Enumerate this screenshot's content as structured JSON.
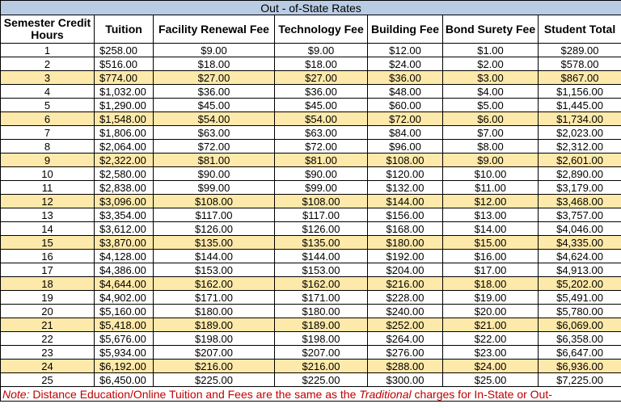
{
  "title": "Out - of-State Rates",
  "headers": {
    "hours": "Semester Credit Hours",
    "tuition": "Tuition",
    "facility": "Facility Renewal Fee",
    "technology": "Technology Fee",
    "building": "Building Fee",
    "bond": "Bond Surety Fee",
    "total": "Student Total"
  },
  "highlight_color": "#fde9a9",
  "title_color": "#b8cce4",
  "note_color": "#c00000",
  "rows": [
    {
      "hours": "1",
      "tuition": "$258.00",
      "facility": "$9.00",
      "technology": "$9.00",
      "building": "$12.00",
      "bond": "$1.00",
      "total": "$289.00",
      "highlight": false
    },
    {
      "hours": "2",
      "tuition": "$516.00",
      "facility": "$18.00",
      "technology": "$18.00",
      "building": "$24.00",
      "bond": "$2.00",
      "total": "$578.00",
      "highlight": false
    },
    {
      "hours": "3",
      "tuition": "$774.00",
      "facility": "$27.00",
      "technology": "$27.00",
      "building": "$36.00",
      "bond": "$3.00",
      "total": "$867.00",
      "highlight": true
    },
    {
      "hours": "4",
      "tuition": "$1,032.00",
      "facility": "$36.00",
      "technology": "$36.00",
      "building": "$48.00",
      "bond": "$4.00",
      "total": "$1,156.00",
      "highlight": false
    },
    {
      "hours": "5",
      "tuition": "$1,290.00",
      "facility": "$45.00",
      "technology": "$45.00",
      "building": "$60.00",
      "bond": "$5.00",
      "total": "$1,445.00",
      "highlight": false
    },
    {
      "hours": "6",
      "tuition": "$1,548.00",
      "facility": "$54.00",
      "technology": "$54.00",
      "building": "$72.00",
      "bond": "$6.00",
      "total": "$1,734.00",
      "highlight": true
    },
    {
      "hours": "7",
      "tuition": "$1,806.00",
      "facility": "$63.00",
      "technology": "$63.00",
      "building": "$84.00",
      "bond": "$7.00",
      "total": "$2,023.00",
      "highlight": false
    },
    {
      "hours": "8",
      "tuition": "$2,064.00",
      "facility": "$72.00",
      "technology": "$72.00",
      "building": "$96.00",
      "bond": "$8.00",
      "total": "$2,312.00",
      "highlight": false
    },
    {
      "hours": "9",
      "tuition": "$2,322.00",
      "facility": "$81.00",
      "technology": "$81.00",
      "building": "$108.00",
      "bond": "$9.00",
      "total": "$2,601.00",
      "highlight": true
    },
    {
      "hours": "10",
      "tuition": "$2,580.00",
      "facility": "$90.00",
      "technology": "$90.00",
      "building": "$120.00",
      "bond": "$10.00",
      "total": "$2,890.00",
      "highlight": false
    },
    {
      "hours": "11",
      "tuition": "$2,838.00",
      "facility": "$99.00",
      "technology": "$99.00",
      "building": "$132.00",
      "bond": "$11.00",
      "total": "$3,179.00",
      "highlight": false
    },
    {
      "hours": "12",
      "tuition": "$3,096.00",
      "facility": "$108.00",
      "technology": "$108.00",
      "building": "$144.00",
      "bond": "$12.00",
      "total": "$3,468.00",
      "highlight": true
    },
    {
      "hours": "13",
      "tuition": "$3,354.00",
      "facility": "$117.00",
      "technology": "$117.00",
      "building": "$156.00",
      "bond": "$13.00",
      "total": "$3,757.00",
      "highlight": false
    },
    {
      "hours": "14",
      "tuition": "$3,612.00",
      "facility": "$126.00",
      "technology": "$126.00",
      "building": "$168.00",
      "bond": "$14.00",
      "total": "$4,046.00",
      "highlight": false
    },
    {
      "hours": "15",
      "tuition": "$3,870.00",
      "facility": "$135.00",
      "technology": "$135.00",
      "building": "$180.00",
      "bond": "$15.00",
      "total": "$4,335.00",
      "highlight": true
    },
    {
      "hours": "16",
      "tuition": "$4,128.00",
      "facility": "$144.00",
      "technology": "$144.00",
      "building": "$192.00",
      "bond": "$16.00",
      "total": "$4,624.00",
      "highlight": false
    },
    {
      "hours": "17",
      "tuition": "$4,386.00",
      "facility": "$153.00",
      "technology": "$153.00",
      "building": "$204.00",
      "bond": "$17.00",
      "total": "$4,913.00",
      "highlight": false
    },
    {
      "hours": "18",
      "tuition": "$4,644.00",
      "facility": "$162.00",
      "technology": "$162.00",
      "building": "$216.00",
      "bond": "$18.00",
      "total": "$5,202.00",
      "highlight": true
    },
    {
      "hours": "19",
      "tuition": "$4,902.00",
      "facility": "$171.00",
      "technology": "$171.00",
      "building": "$228.00",
      "bond": "$19.00",
      "total": "$5,491.00",
      "highlight": false
    },
    {
      "hours": "20",
      "tuition": "$5,160.00",
      "facility": "$180.00",
      "technology": "$180.00",
      "building": "$240.00",
      "bond": "$20.00",
      "total": "$5,780.00",
      "highlight": false
    },
    {
      "hours": "21",
      "tuition": "$5,418.00",
      "facility": "$189.00",
      "technology": "$189.00",
      "building": "$252.00",
      "bond": "$21.00",
      "total": "$6,069.00",
      "highlight": true
    },
    {
      "hours": "22",
      "tuition": "$5,676.00",
      "facility": "$198.00",
      "technology": "$198.00",
      "building": "$264.00",
      "bond": "$22.00",
      "total": "$6,358.00",
      "highlight": false
    },
    {
      "hours": "23",
      "tuition": "$5,934.00",
      "facility": "$207.00",
      "technology": "$207.00",
      "building": "$276.00",
      "bond": "$23.00",
      "total": "$6,647.00",
      "highlight": false
    },
    {
      "hours": "24",
      "tuition": "$6,192.00",
      "facility": "$216.00",
      "technology": "$216.00",
      "building": "$288.00",
      "bond": "$24.00",
      "total": "$6,936.00",
      "highlight": true
    },
    {
      "hours": "25",
      "tuition": "$6,450.00",
      "facility": "$225.00",
      "technology": "$225.00",
      "building": "$300.00",
      "bond": "$25.00",
      "total": "$7,225.00",
      "highlight": false
    }
  ],
  "note": {
    "label": "Note:",
    "text1": " Distance Education/Online Tuition and Fees are the same as the ",
    "emphasis": "Traditional",
    "text2": " charges for In-State or Out-"
  }
}
